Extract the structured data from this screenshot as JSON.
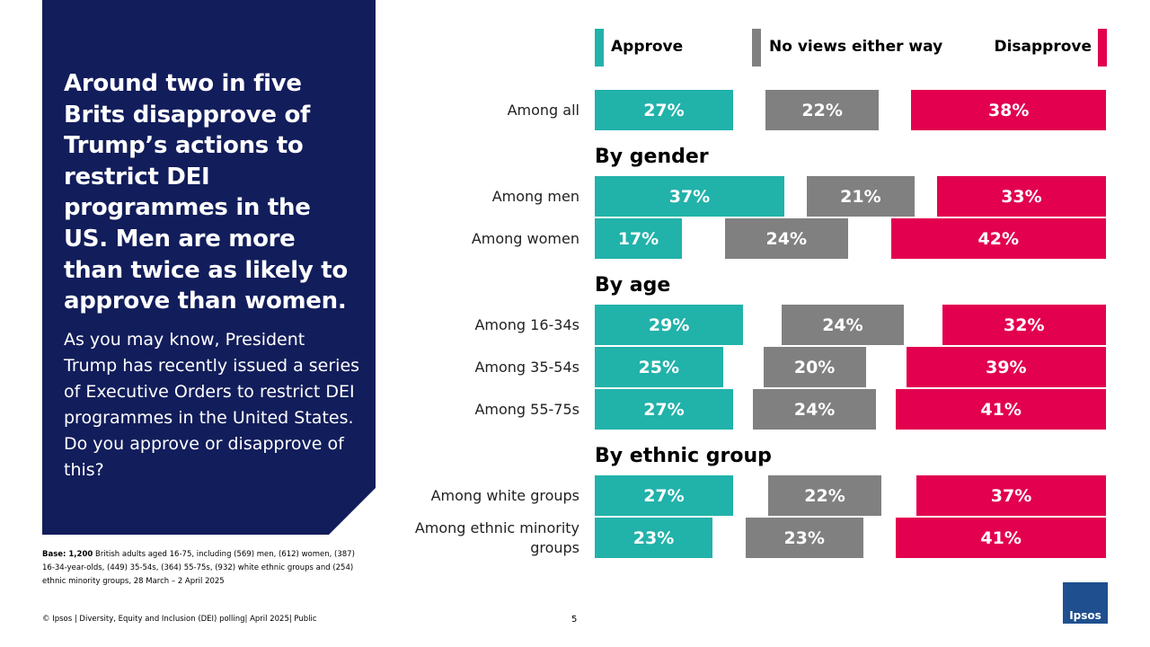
{
  "panel": {
    "headline": "Around two in five Brits disapprove of Trump’s actions to restrict DEI programmes in the US. Men are more than twice as likely to approve than women.",
    "question": "As you may know, President Trump has recently issued a series of Executive Orders to restrict DEI programmes in the United States. Do you approve or disapprove of this?"
  },
  "footnote": {
    "base_label": "Base: 1,200",
    "base_text": "British adults aged 16-75, including (569) men, (612) women, (387) 16-34-year-olds, (449) 35-54s, (364) 55-75s, (932) white ethnic groups and (254) ethnic minority groups, 28 March – 2 April 2025"
  },
  "footer": {
    "source": "© Ipsos | Diversity, Equity and Inclusion (DEI) polling| April 2025| Public",
    "page_number": "5",
    "logo": "Ipsos"
  },
  "chart_data": {
    "type": "bar",
    "groups": [
      {
        "categories": [
          "Among all"
        ]
      },
      {
        "title": "By gender",
        "categories": [
          "Among men",
          "Among women"
        ]
      },
      {
        "title": "By age",
        "categories": [
          "Among 16-34s",
          "Among 35-54s",
          "Among 55-75s"
        ]
      },
      {
        "title": "By ethnic group",
        "categories": [
          "Among white groups",
          "Among ethnic minority groups"
        ]
      }
    ],
    "series": [
      {
        "name": "Approve",
        "color": "#21b2aa",
        "values": [
          27,
          37,
          17,
          29,
          25,
          27,
          27,
          23
        ],
        "value_labels": [
          "27%",
          "37%",
          "17%",
          "29%",
          "25%",
          "27%",
          "27%",
          "23%"
        ]
      },
      {
        "name": "No views either way",
        "color": "#808080",
        "values": [
          22,
          21,
          24,
          24,
          20,
          24,
          22,
          23
        ],
        "value_labels": [
          "22%",
          "21%",
          "24%",
          "24%",
          "20%",
          "24%",
          "22%",
          "23%"
        ]
      },
      {
        "name": "Disapprove",
        "color": "#e2004f",
        "values": [
          38,
          33,
          42,
          32,
          39,
          41,
          37,
          41
        ],
        "value_labels": [
          "38%",
          "33%",
          "42%",
          "32%",
          "39%",
          "41%",
          "37%",
          "41%"
        ]
      }
    ]
  }
}
